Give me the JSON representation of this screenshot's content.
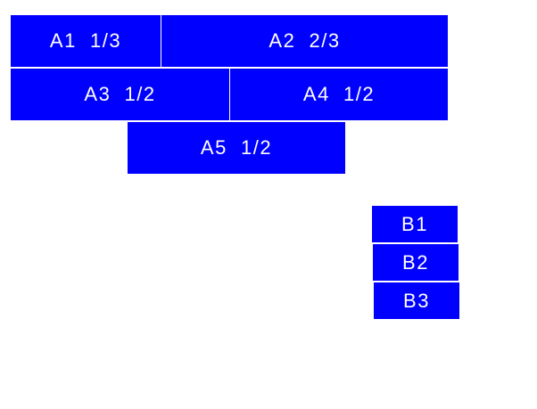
{
  "colors": {
    "box": "#0000ff",
    "text": "#ffffff"
  },
  "group_a": [
    {
      "label": "A1  1/3"
    },
    {
      "label": "A2  2/3"
    },
    {
      "label": "A3  1/2"
    },
    {
      "label": "A4  1/2"
    },
    {
      "label": "A5  1/2"
    }
  ],
  "group_b": [
    {
      "label": "B1"
    },
    {
      "label": "B2"
    },
    {
      "label": "B3"
    }
  ]
}
